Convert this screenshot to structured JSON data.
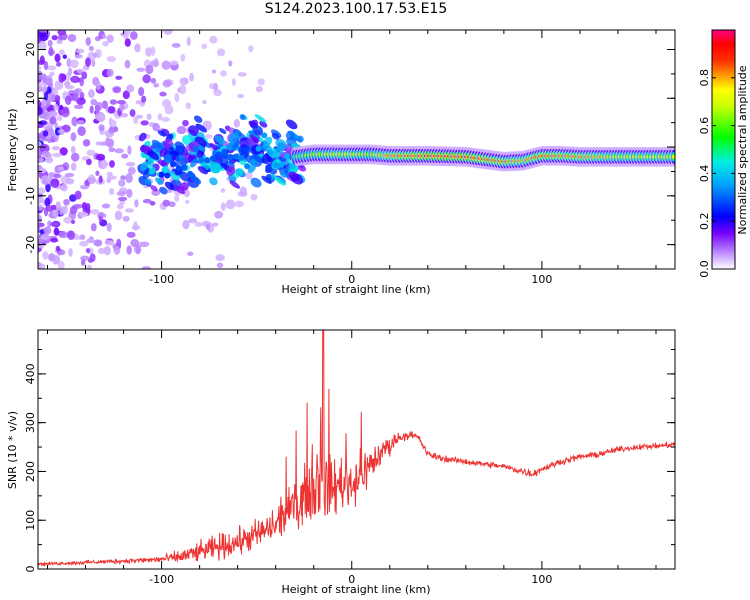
{
  "title": "S124.2023.100.17.53.E15",
  "colors": {
    "snr_line": "#ee3333",
    "axis": "#000000",
    "background": "#ffffff"
  },
  "chart_data": [
    {
      "type": "heatmap",
      "title": "S124.2023.100.17.53.E15",
      "xlabel": "Height of straight line (km)",
      "ylabel": "Frequency (Hz)",
      "xlim": [
        -165,
        170
      ],
      "ylim": [
        -25,
        24
      ],
      "xticks": [
        -100,
        0,
        100
      ],
      "yticks": [
        -20,
        -10,
        0,
        10,
        20
      ],
      "grid": false,
      "colorbar": {
        "label": "Normalized spectral amplitude",
        "range": [
          0,
          1
        ],
        "ticks": [
          "0.0",
          "0.2",
          "0.4",
          "0.6",
          "0.8"
        ],
        "tick_values": [
          0.0,
          0.2,
          0.4,
          0.6,
          0.8
        ],
        "colormap": [
          "#ffffff",
          "#8800ff",
          "#0000ff",
          "#00e5ff",
          "#00ff00",
          "#ffff00",
          "#ff0000",
          "#ff0077"
        ]
      },
      "ridge": {
        "description_points_x": [
          -160,
          -130,
          -115,
          -100,
          -90,
          -80,
          -70,
          -60,
          -50,
          -40,
          -30,
          -20,
          -10,
          0,
          10,
          20,
          40,
          60,
          70,
          80,
          90,
          100,
          110,
          120,
          140,
          160,
          170
        ],
        "freq": [
          -4,
          -5,
          -4,
          -3,
          -2,
          -1,
          -2,
          -1,
          -1,
          -2,
          -2,
          -1.5,
          -1.5,
          -1.5,
          -1.5,
          -1.8,
          -1.8,
          -2,
          -2.5,
          -3,
          -2.8,
          -1.8,
          -1.8,
          -2,
          -2,
          -2,
          -2
        ],
        "amp": [
          0.15,
          0.2,
          0.3,
          0.35,
          0.4,
          0.45,
          0.4,
          0.45,
          0.5,
          0.5,
          0.55,
          0.7,
          0.75,
          0.75,
          0.7,
          0.85,
          0.95,
          0.95,
          0.9,
          0.85,
          0.8,
          0.9,
          0.85,
          0.85,
          0.75,
          0.75,
          0.75
        ]
      }
    },
    {
      "type": "line",
      "xlabel": "Height of straight line (km)",
      "ylabel": "SNR (10 * v/v)",
      "xlim": [
        -165,
        170
      ],
      "ylim": [
        0,
        490
      ],
      "xticks": [
        -100,
        0,
        100
      ],
      "yticks": [
        0,
        100,
        200,
        300,
        400
      ],
      "grid": false,
      "series": [
        {
          "x": [
            -165,
            -150,
            -130,
            -110,
            -100,
            -90,
            -80,
            -70,
            -60,
            -50,
            -40,
            -35,
            -30,
            -25,
            -20,
            -18,
            -15,
            -10,
            -5,
            0,
            5,
            10,
            15,
            20,
            25,
            30,
            35,
            40,
            50,
            60,
            70,
            80,
            90,
            95,
            100,
            110,
            120,
            130,
            140,
            150,
            160,
            170
          ],
          "y": [
            10,
            12,
            15,
            18,
            20,
            25,
            35,
            45,
            55,
            70,
            90,
            110,
            130,
            150,
            170,
            190,
            170,
            165,
            180,
            175,
            195,
            215,
            235,
            255,
            270,
            275,
            270,
            235,
            225,
            220,
            215,
            210,
            200,
            195,
            205,
            220,
            230,
            235,
            245,
            250,
            252,
            255
          ],
          "noise": [
            4,
            5,
            6,
            8,
            12,
            20,
            30,
            38,
            40,
            45,
            55,
            60,
            70,
            80,
            100,
            120,
            110,
            90,
            80,
            80,
            70,
            55,
            45,
            30,
            15,
            12,
            12,
            10,
            9,
            9,
            9,
            10,
            12,
            12,
            10,
            9,
            9,
            9,
            9,
            8,
            8,
            8
          ],
          "peak": {
            "x": -15,
            "y": 490
          }
        }
      ]
    }
  ]
}
